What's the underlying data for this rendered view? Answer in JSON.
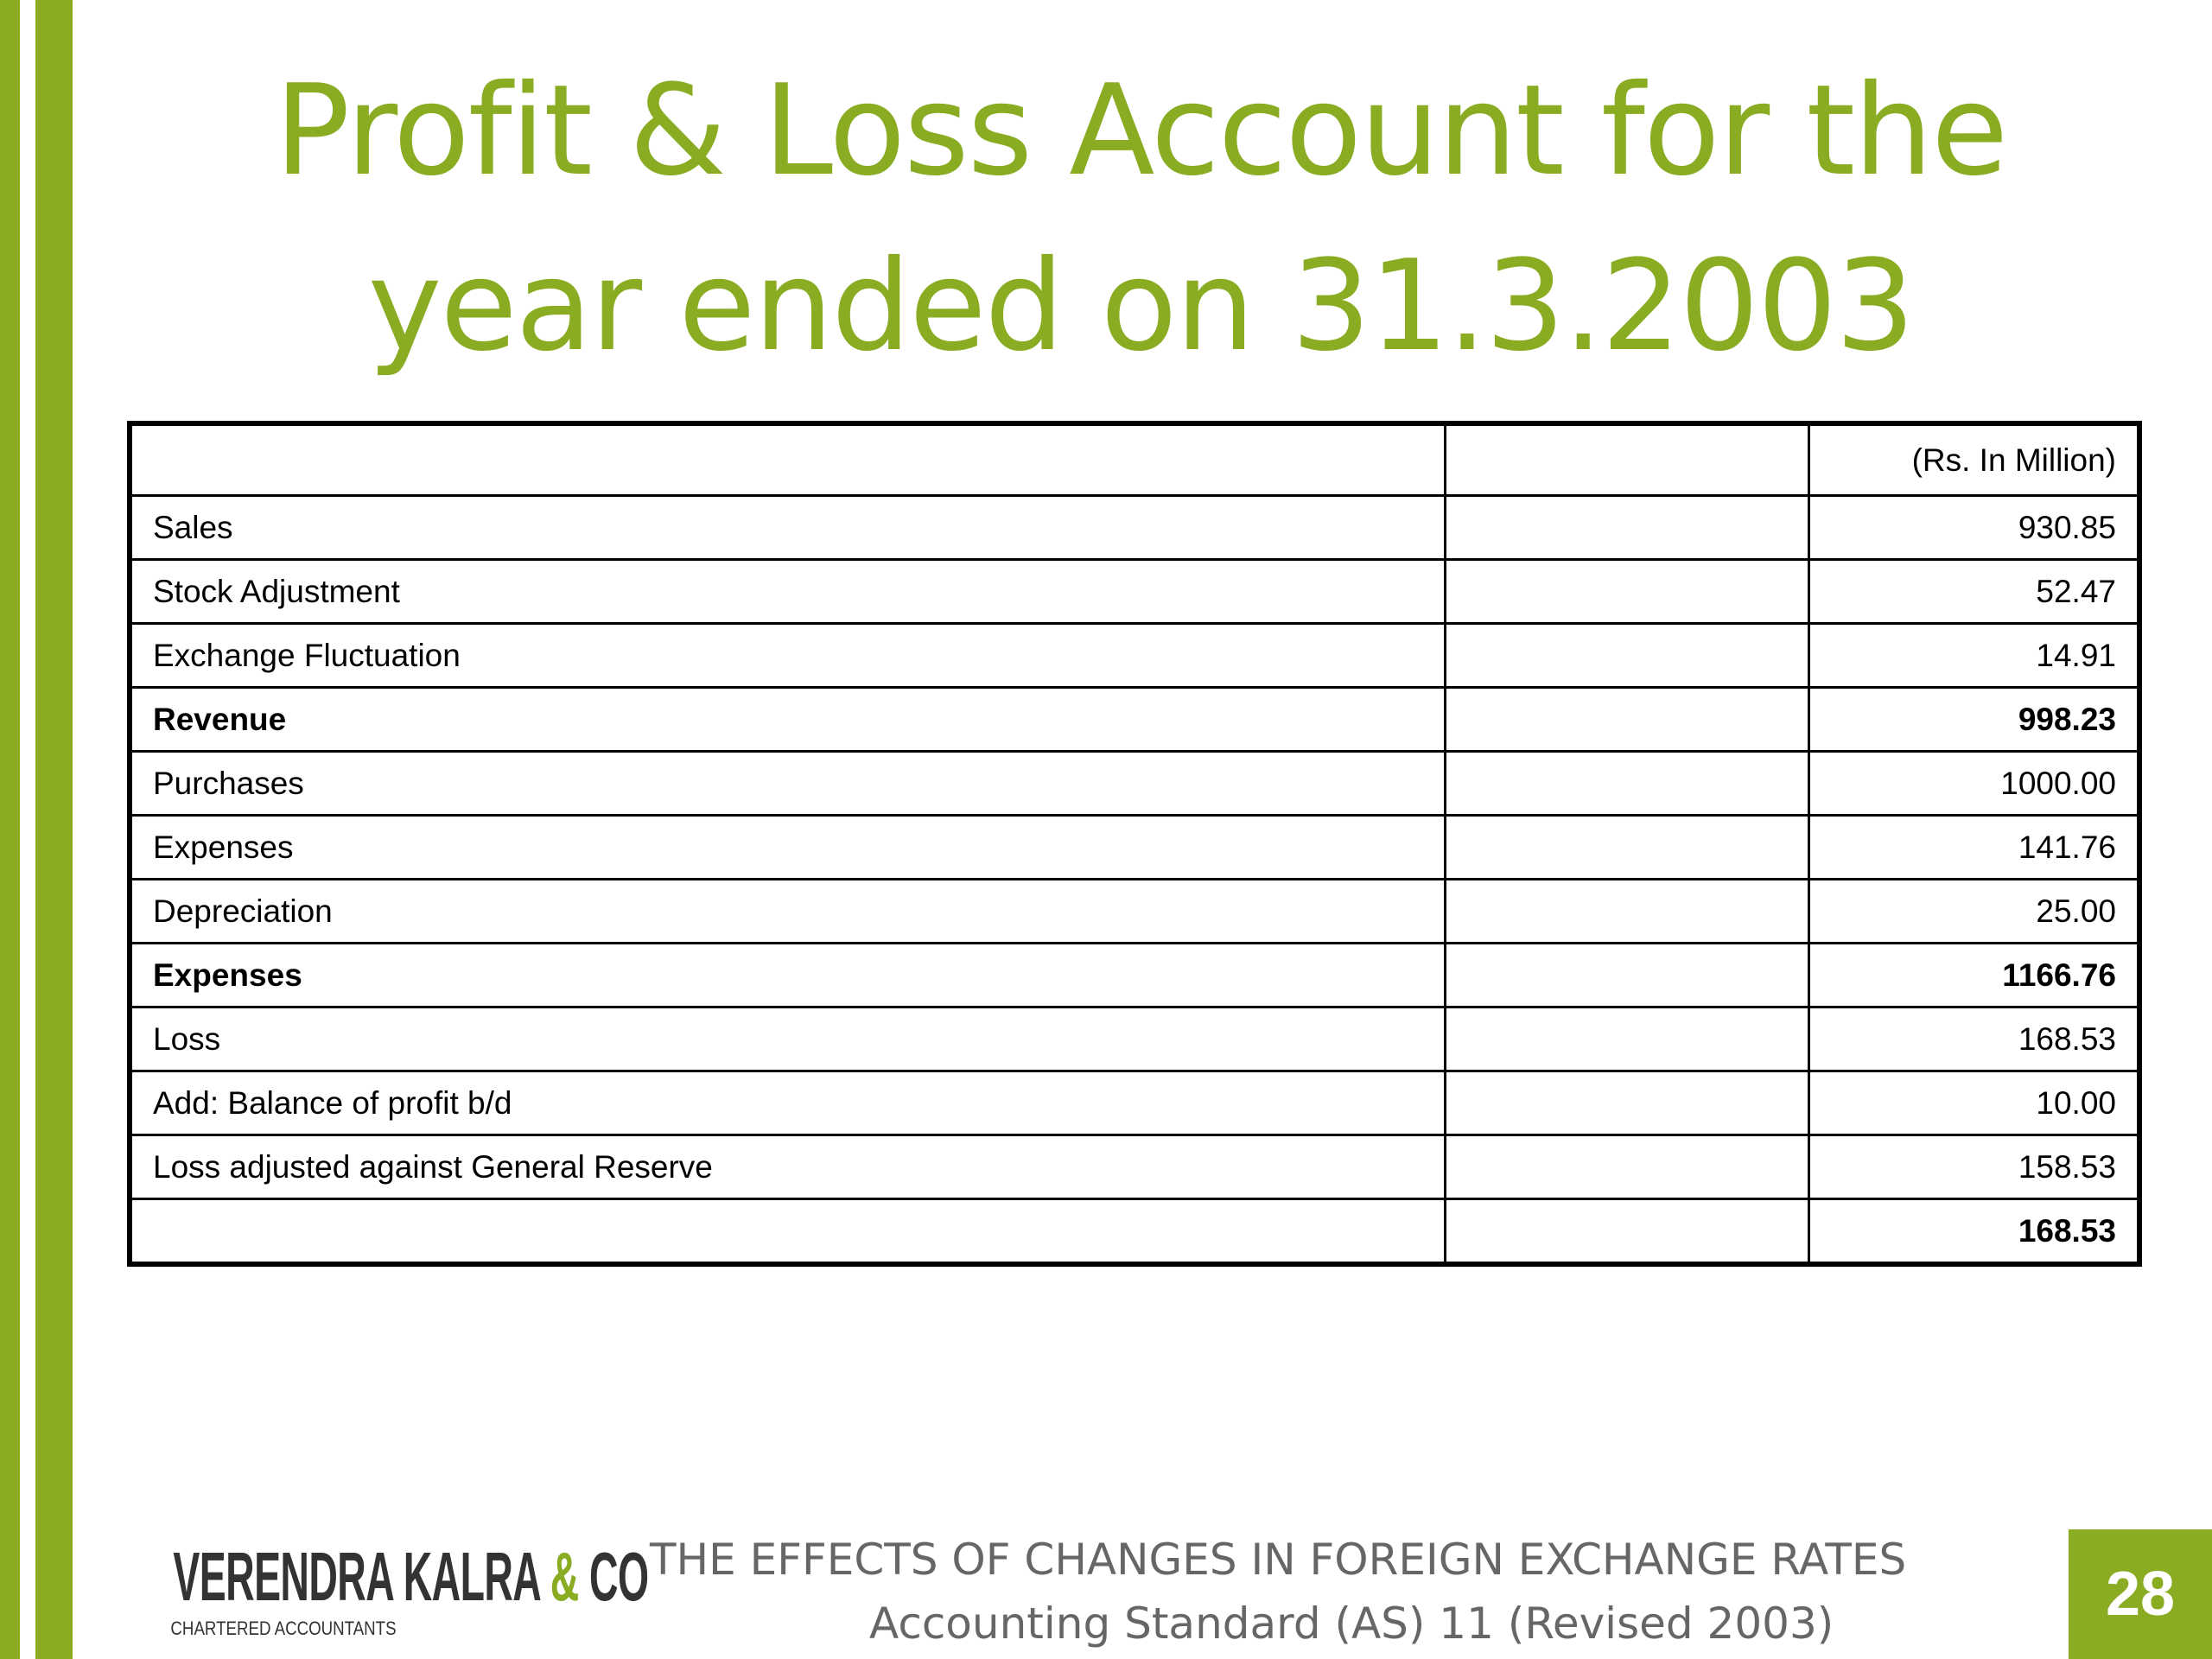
{
  "slide": {
    "title_line1": "Profit & Loss  Account for the",
    "title_line2": "year ended on 31.3.2003",
    "accent_color": "#8aac23"
  },
  "table": {
    "unit_label": "(Rs. In Million)",
    "rows": [
      {
        "label": "Sales",
        "value": "930.85",
        "bold": false
      },
      {
        "label": "Stock Adjustment",
        "value": "52.47",
        "bold": false
      },
      {
        "label": "Exchange Fluctuation",
        "value": "14.91",
        "bold": false
      },
      {
        "label": "Revenue",
        "value": "998.23",
        "bold": true
      },
      {
        "label": "Purchases",
        "value": "1000.00",
        "bold": false
      },
      {
        "label": "Expenses",
        "value": "141.76",
        "bold": false
      },
      {
        "label": "Depreciation",
        "value": "25.00",
        "bold": false
      },
      {
        "label": "Expenses",
        "value": "1166.76",
        "bold": true
      },
      {
        "label": "Loss",
        "value": "168.53",
        "bold": false
      },
      {
        "label": "Add: Balance of profit b/d",
        "value": "10.00",
        "bold": false
      },
      {
        "label": "Loss adjusted against General Reserve",
        "value": "158.53",
        "bold": false
      },
      {
        "label": "",
        "value": "168.53",
        "bold": true
      }
    ]
  },
  "footer": {
    "logo_name_part1": "VERENDRA KALRA ",
    "logo_ampersand": "&",
    "logo_name_part2": " CO",
    "logo_subtitle": "CHARTERED ACCOUNTANTS",
    "line1": "THE EFFECTS OF CHANGES IN FOREIGN EXCHANGE RATES",
    "line2": "Accounting Standard (AS) 11 (Revised 2003)",
    "page_number": "28"
  }
}
